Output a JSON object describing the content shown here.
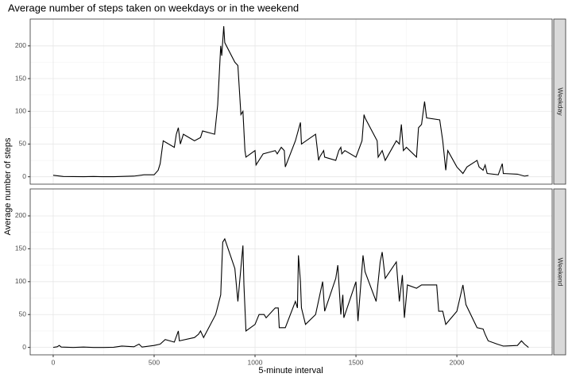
{
  "chart_data": [
    {
      "type": "line",
      "title": "Average number of steps taken on weekdays or in the weekend",
      "y_label": "Average number of steps",
      "panel": "Weekday",
      "color": "#000000",
      "grid": true,
      "xlim": [
        -114,
        2472
      ],
      "ylim": [
        -11.3,
        241
      ],
      "xticks": [
        0,
        500,
        1000,
        1500,
        2000
      ],
      "yticks": [
        0,
        50,
        100,
        150,
        200
      ],
      "x": [
        0,
        50,
        100,
        150,
        200,
        250,
        300,
        350,
        400,
        450,
        500,
        520,
        530,
        545,
        600,
        610,
        620,
        630,
        645,
        700,
        730,
        740,
        800,
        815,
        830,
        835,
        845,
        850,
        900,
        915,
        925,
        930,
        940,
        950,
        955,
        1000,
        1005,
        1040,
        1100,
        1110,
        1130,
        1145,
        1150,
        1200,
        1225,
        1230,
        1300,
        1315,
        1320,
        1340,
        1345,
        1400,
        1415,
        1425,
        1430,
        1445,
        1500,
        1530,
        1540,
        1545,
        1605,
        1610,
        1630,
        1645,
        1700,
        1715,
        1725,
        1735,
        1750,
        1800,
        1810,
        1825,
        1840,
        1850,
        1915,
        1930,
        1945,
        1955,
        2000,
        2030,
        2050,
        2100,
        2110,
        2130,
        2140,
        2150,
        2205,
        2225,
        2230,
        2300,
        2335,
        2355
      ],
      "values": [
        2.3,
        0.5,
        0.3,
        0.2,
        0.4,
        0.1,
        0.2,
        0.6,
        1,
        3,
        3,
        10,
        20,
        55,
        45,
        65,
        75,
        50,
        65,
        55,
        60,
        70,
        65,
        110,
        200,
        185,
        230,
        205,
        175,
        170,
        120,
        95,
        100,
        40,
        30,
        40,
        18,
        35,
        40,
        35,
        45,
        40,
        15,
        55,
        83,
        50,
        65,
        25,
        30,
        40,
        30,
        25,
        40,
        45,
        35,
        40,
        30,
        55,
        95,
        90,
        55,
        30,
        40,
        25,
        55,
        50,
        80,
        40,
        45,
        30,
        75,
        80,
        115,
        90,
        87,
        55,
        10,
        40,
        15,
        5,
        15,
        25,
        15,
        10,
        18,
        5,
        3,
        20,
        5,
        4,
        1,
        2
      ]
    },
    {
      "type": "line",
      "x_label": "5-minute interval",
      "panel": "Weekend",
      "color": "#000000",
      "grid": true,
      "xlim": [
        -114,
        2472
      ],
      "ylim": [
        -11.3,
        241
      ],
      "xticks": [
        0,
        500,
        1000,
        1500,
        2000
      ],
      "yticks": [
        0,
        50,
        100,
        150,
        200
      ],
      "x": [
        0,
        20,
        30,
        40,
        100,
        150,
        200,
        250,
        300,
        340,
        400,
        425,
        440,
        500,
        530,
        555,
        600,
        620,
        625,
        700,
        720,
        730,
        745,
        805,
        830,
        840,
        850,
        900,
        915,
        940,
        945,
        955,
        1000,
        1020,
        1045,
        1055,
        1100,
        1115,
        1120,
        1150,
        1200,
        1210,
        1215,
        1225,
        1230,
        1250,
        1300,
        1335,
        1345,
        1400,
        1410,
        1425,
        1435,
        1440,
        1500,
        1510,
        1520,
        1535,
        1545,
        1600,
        1620,
        1630,
        1645,
        1700,
        1715,
        1730,
        1740,
        1755,
        1800,
        1825,
        1900,
        1910,
        1930,
        1945,
        2000,
        2030,
        2045,
        2100,
        2130,
        2140,
        2155,
        2200,
        2230,
        2300,
        2320,
        2335,
        2355
      ],
      "values": [
        0,
        1,
        3,
        0.5,
        0,
        0.5,
        0,
        0,
        0.2,
        2,
        1,
        5,
        0.5,
        3,
        5,
        12,
        8,
        25,
        10,
        15,
        20,
        25,
        15,
        50,
        80,
        160,
        165,
        120,
        70,
        155,
        95,
        25,
        35,
        50,
        50,
        45,
        60,
        60,
        30,
        30,
        70,
        60,
        140,
        100,
        60,
        35,
        50,
        100,
        55,
        105,
        125,
        50,
        80,
        45,
        100,
        40,
        80,
        140,
        115,
        70,
        130,
        145,
        105,
        130,
        70,
        110,
        45,
        95,
        90,
        95,
        95,
        55,
        55,
        35,
        55,
        95,
        65,
        30,
        28,
        20,
        10,
        5,
        2,
        3,
        10,
        5,
        0
      ]
    }
  ]
}
